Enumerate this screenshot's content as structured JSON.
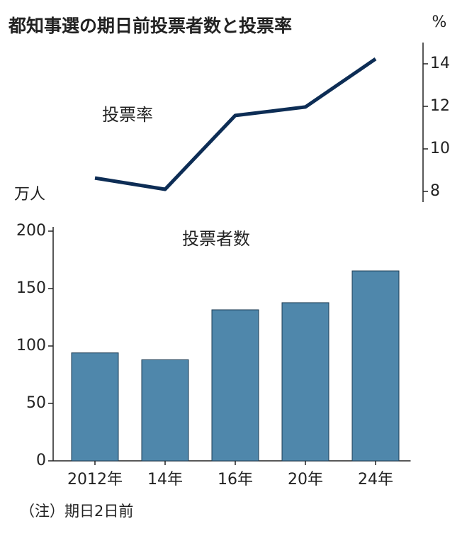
{
  "title": "都知事選の期日前投票者数と投票率",
  "note": "（注）期日2日前",
  "chart_data": [
    {
      "type": "line",
      "label": "投票率",
      "unit": "%",
      "categories": [
        null,
        null,
        null,
        null,
        null
      ],
      "values": [
        8.63,
        8.1,
        11.57,
        11.97,
        14.23
      ],
      "color": "#0d2d55",
      "ylim": [
        7.5,
        15
      ],
      "yticks": [
        8,
        10,
        12,
        14
      ]
    },
    {
      "type": "bar",
      "label": "投票者数",
      "unit": "万人",
      "categories": [
        "2012年",
        "14年",
        "16年",
        "20年",
        "24年"
      ],
      "values": [
        94,
        88,
        131.5,
        137.7,
        165.4
      ],
      "color": "#4f87ab",
      "ylim": [
        0,
        200
      ],
      "yticks": [
        0,
        50,
        100,
        150,
        200
      ]
    }
  ]
}
